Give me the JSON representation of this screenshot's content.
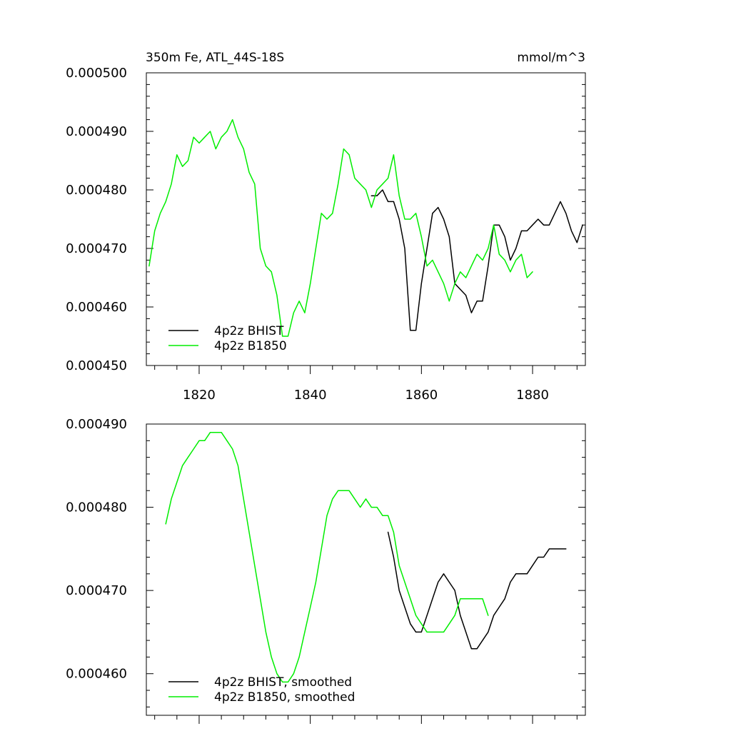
{
  "chart_data": [
    {
      "type": "line",
      "title": "350m Fe, ATL_44S-18S",
      "units": "mmol/m^3",
      "xlim": [
        1810.5,
        1889.5
      ],
      "ylim": [
        0.00045,
        0.0005
      ],
      "xticks": [
        1820,
        1840,
        1860,
        1880
      ],
      "xtick_labels": [
        "1820",
        "1840",
        "1860",
        "1880"
      ],
      "yticks": [
        0.00045,
        0.00046,
        0.00047,
        0.00048,
        0.00049,
        0.0005
      ],
      "ytick_labels": [
        "0.000450",
        "0.000460",
        "0.000470",
        "0.000480",
        "0.000490",
        "0.000500"
      ],
      "legend_position": "bottom-left",
      "series": [
        {
          "name": "4p2z BHIST",
          "color": "#000000",
          "x_start": 1851,
          "values": [
            0.000479,
            0.000479,
            0.00048,
            0.000478,
            0.000478,
            0.000475,
            0.00047,
            0.000456,
            0.000456,
            0.000464,
            0.00047,
            0.000476,
            0.000477,
            0.000475,
            0.000472,
            0.000464,
            0.000463,
            0.000462,
            0.000459,
            0.000461,
            0.000461,
            0.000467,
            0.000474,
            0.000474,
            0.000472,
            0.000468,
            0.00047,
            0.000473,
            0.000473,
            0.000474,
            0.000475,
            0.000474,
            0.000474,
            0.000476,
            0.000478,
            0.000476,
            0.000473,
            0.000471,
            0.000474
          ]
        },
        {
          "name": "4p2z B1850",
          "color": "#00ee00",
          "x_start": 1811,
          "values": [
            0.000467,
            0.000473,
            0.000476,
            0.000478,
            0.000481,
            0.000486,
            0.000484,
            0.000485,
            0.000489,
            0.000488,
            0.000489,
            0.00049,
            0.000487,
            0.000489,
            0.00049,
            0.000492,
            0.000489,
            0.000487,
            0.000483,
            0.000481,
            0.00047,
            0.000467,
            0.000466,
            0.000462,
            0.000455,
            0.000455,
            0.000459,
            0.000461,
            0.000459,
            0.000464,
            0.00047,
            0.000476,
            0.000475,
            0.000476,
            0.000481,
            0.000487,
            0.000486,
            0.000482,
            0.000481,
            0.00048,
            0.000477,
            0.00048,
            0.000481,
            0.000482,
            0.000486,
            0.000479,
            0.000475,
            0.000475,
            0.000476,
            0.000472,
            0.000467,
            0.000468,
            0.000466,
            0.000464,
            0.000461,
            0.000464,
            0.000466,
            0.000465,
            0.000467,
            0.000469,
            0.000468,
            0.00047,
            0.000474,
            0.000469,
            0.000468,
            0.000466,
            0.000468,
            0.000469,
            0.000465,
            0.000466
          ]
        }
      ]
    },
    {
      "type": "line",
      "xlim": [
        1810.5,
        1889.5
      ],
      "ylim": [
        0.000455,
        0.00049
      ],
      "xticks": [
        1820,
        1840,
        1860,
        1880
      ],
      "yticks": [
        0.00046,
        0.00047,
        0.00048,
        0.00049
      ],
      "ytick_labels": [
        "0.000460",
        "0.000470",
        "0.000480",
        "0.000490"
      ],
      "legend_position": "bottom-left",
      "series": [
        {
          "name": "4p2z BHIST, smoothed",
          "color": "#000000",
          "x_start": 1854,
          "values": [
            0.000477,
            0.000474,
            0.00047,
            0.000468,
            0.000466,
            0.000465,
            0.000465,
            0.000467,
            0.000469,
            0.000471,
            0.000472,
            0.000471,
            0.00047,
            0.000467,
            0.000465,
            0.000463,
            0.000463,
            0.000464,
            0.000465,
            0.000467,
            0.000468,
            0.000469,
            0.000471,
            0.000472,
            0.000472,
            0.000472,
            0.000473,
            0.000474,
            0.000474,
            0.000475,
            0.000475,
            0.000475,
            0.000475
          ]
        },
        {
          "name": "4p2z B1850, smoothed",
          "color": "#00ee00",
          "x_start": 1814,
          "values": [
            0.000478,
            0.000481,
            0.000483,
            0.000485,
            0.000486,
            0.000487,
            0.000488,
            0.000488,
            0.000489,
            0.000489,
            0.000489,
            0.000488,
            0.000487,
            0.000485,
            0.000481,
            0.000477,
            0.000473,
            0.000469,
            0.000465,
            0.000462,
            0.00046,
            0.000459,
            0.000459,
            0.00046,
            0.000462,
            0.000465,
            0.000468,
            0.000471,
            0.000475,
            0.000479,
            0.000481,
            0.000482,
            0.000482,
            0.000482,
            0.000481,
            0.00048,
            0.000481,
            0.00048,
            0.00048,
            0.000479,
            0.000479,
            0.000477,
            0.000473,
            0.000471,
            0.000469,
            0.000467,
            0.000466,
            0.000465,
            0.000465,
            0.000465,
            0.000465,
            0.000466,
            0.000467,
            0.000469,
            0.000469,
            0.000469,
            0.000469,
            0.000469,
            0.000467
          ]
        }
      ]
    }
  ]
}
